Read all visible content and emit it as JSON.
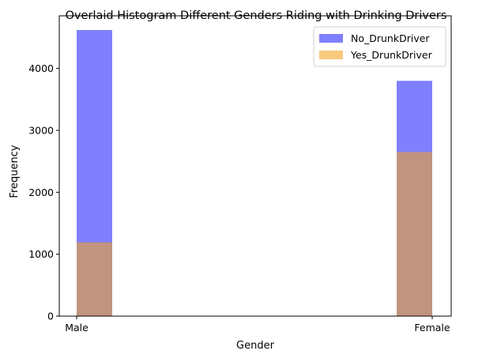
{
  "chart_data": {
    "type": "bar",
    "title": "Overlaid Histogram Different Genders Riding with Drinking Drivers",
    "xlabel": "Gender",
    "ylabel": "Frequency",
    "categories": [
      "Male",
      "Female"
    ],
    "ylim": [
      0,
      4850
    ],
    "yticks": [
      0,
      1000,
      2000,
      3000,
      4000
    ],
    "grid": false,
    "legend_position": "top-right",
    "series": [
      {
        "name": "No_DrunkDriver",
        "color": "#8080ff",
        "values": [
          4620,
          3800
        ]
      },
      {
        "name": "Yes_DrunkDriver",
        "color": "#f9c97c",
        "values": [
          1190,
          2650
        ]
      }
    ],
    "overlap_color": "#c0947f"
  }
}
